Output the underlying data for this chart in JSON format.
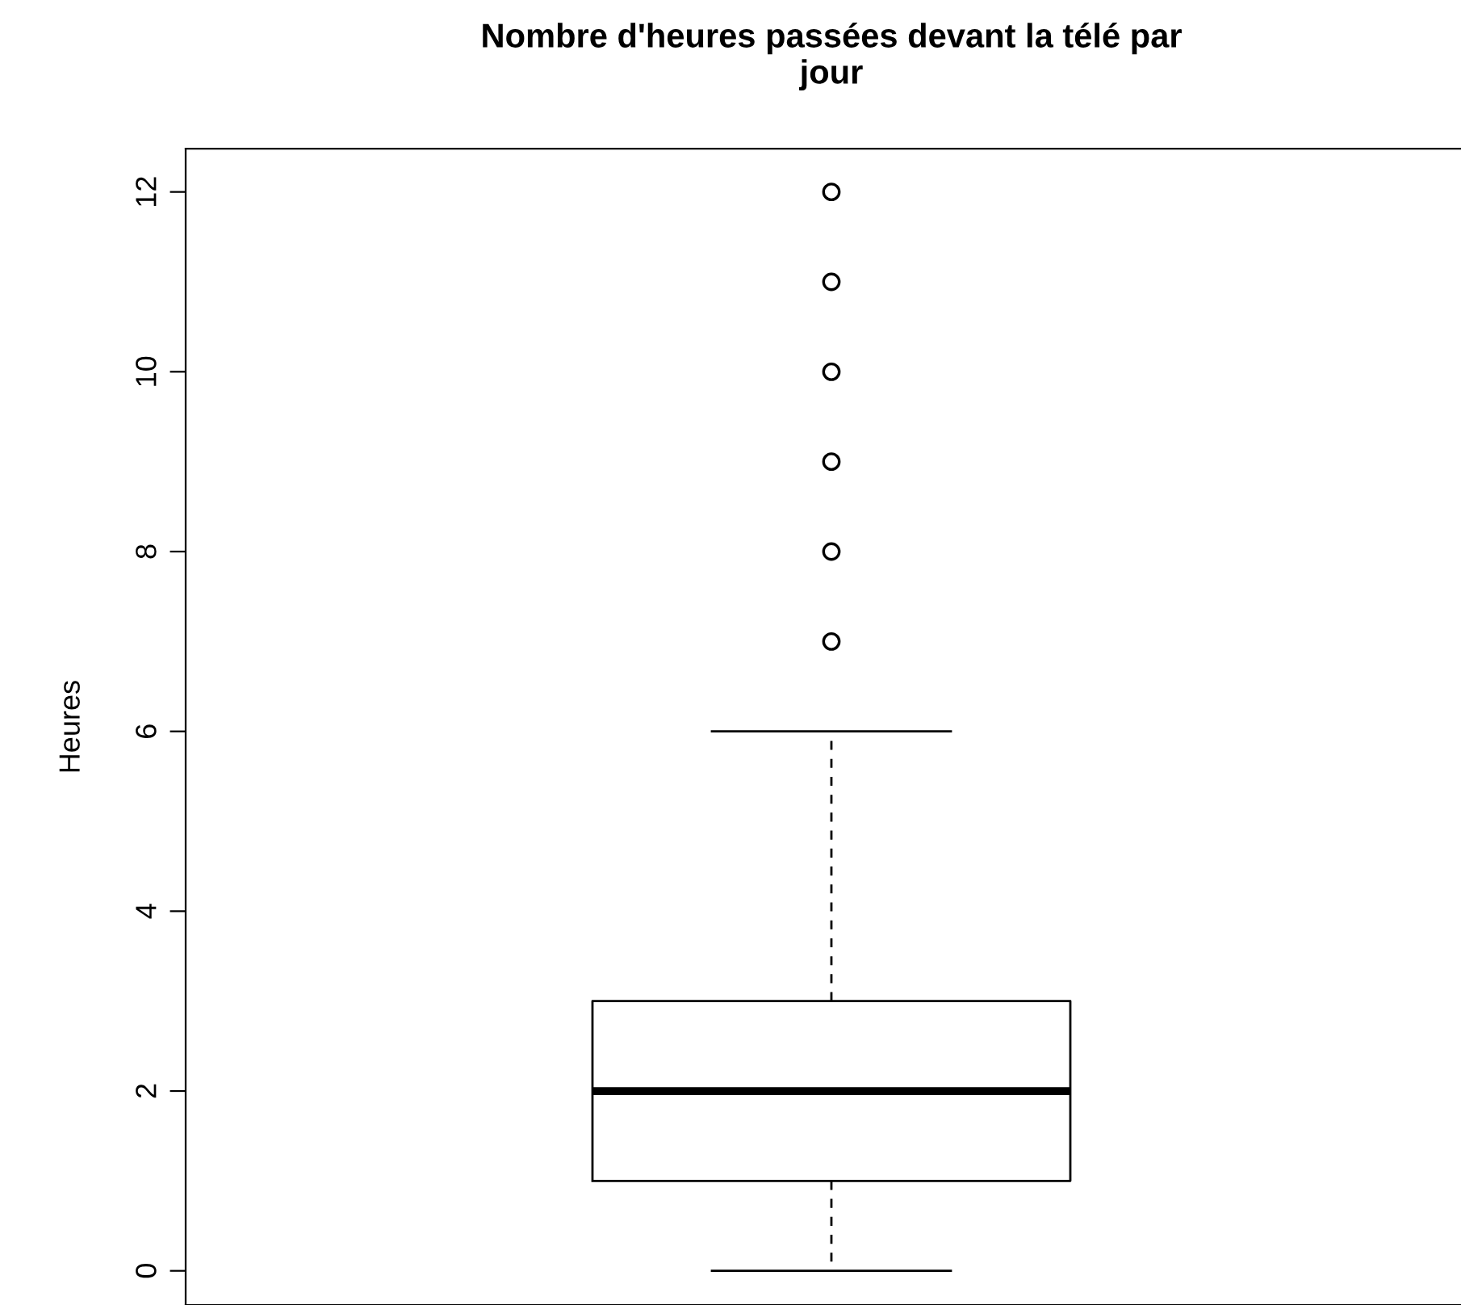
{
  "chart_data": {
    "type": "box",
    "title": "Nombre d'heures passées devant la télé par\njour",
    "ylabel": "Heures",
    "categories": [
      null
    ],
    "boxes": [
      {
        "low": 0,
        "q1": 1,
        "median": 2,
        "q3": 3,
        "high": 6,
        "outliers": [
          7,
          8,
          9,
          10,
          11,
          12
        ]
      }
    ],
    "ylim": [
      -0.38,
      12.48
    ],
    "yticks": [
      0,
      2,
      4,
      6,
      8,
      10,
      12
    ],
    "grid": false,
    "marker": "circle",
    "tick_labels": "y"
  }
}
